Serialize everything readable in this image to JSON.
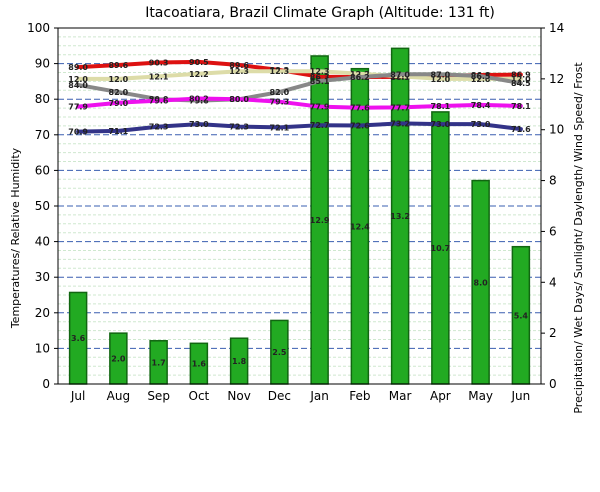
{
  "chart_data": {
    "type": "bar+line",
    "title": "Itacoatiara, Brazil Climate Graph (Altitude: 131 ft)",
    "categories": [
      "Jul",
      "Aug",
      "Sep",
      "Oct",
      "Nov",
      "Dec",
      "Jan",
      "Feb",
      "Mar",
      "Apr",
      "May",
      "Jun"
    ],
    "ylabel": "Temperatures/ Relative Humidity",
    "y2label": "Precipitation/ Wet Days/ Sunlight/ Daylength/ Wind Speed/ Frost",
    "ylim": [
      0,
      100
    ],
    "y2lim": [
      0,
      14
    ],
    "yticks": [
      "0",
      "10",
      "20",
      "30",
      "40",
      "50",
      "60",
      "70",
      "80",
      "90",
      "100"
    ],
    "y2ticks": [
      "0",
      "2",
      "4",
      "6",
      "8",
      "10",
      "12",
      "14"
    ],
    "grid": true,
    "bar_series": {
      "axis": "right",
      "color": "#22aa22",
      "values": [
        3.6,
        2.0,
        1.7,
        1.6,
        1.8,
        2.5,
        12.9,
        12.4,
        13.2,
        10.7,
        8.0,
        5.4
      ],
      "labels": [
        "3.6",
        "2.0",
        "1.7",
        "1.6",
        "1.8",
        "2.5",
        "12.9",
        "12.4",
        "13.2",
        "10.7",
        "8.0",
        "5.4"
      ]
    },
    "line_series": [
      {
        "color": "#dd1111",
        "axis": "left",
        "values": [
          89.0,
          89.6,
          90.3,
          90.5,
          89.6,
          88.2,
          86.3,
          86.2,
          86.3,
          86.5,
          86.8,
          86.9
        ],
        "labels": [
          "89.0",
          "89.6",
          "90.3",
          "90.5",
          "89.6",
          "88.2",
          "86.3",
          "86.2",
          "86.3",
          "86.5",
          "86.8",
          "86.9"
        ]
      },
      {
        "color": "#dddca8",
        "axis": "right",
        "values": [
          12.0,
          12.0,
          12.1,
          12.2,
          12.3,
          12.3,
          12.3,
          12.2,
          12.1,
          12.0,
          12.0,
          12.0
        ],
        "labels": [
          "12.0",
          "12.0",
          "12.1",
          "12.2",
          "12.3",
          "12.3",
          "12.3",
          "12.2",
          "12.1",
          "12.0",
          "12.0",
          "12.0"
        ]
      },
      {
        "color": "#888888",
        "axis": "left",
        "values": [
          84.0,
          82.0,
          80.0,
          79.6,
          80.0,
          82.0,
          85.1,
          86.2,
          87.0,
          87.0,
          86.5,
          84.5
        ],
        "labels": [
          "84.0",
          "82.0",
          "80.0",
          "79.6",
          "80.0",
          "82.0",
          "85.1",
          "86.2",
          "87.0",
          "87.0",
          "86.5",
          "84.5"
        ]
      },
      {
        "color": "#ee11ee",
        "axis": "left",
        "values": [
          77.9,
          79.0,
          79.6,
          80.2,
          80.0,
          79.3,
          77.9,
          77.6,
          77.7,
          78.1,
          78.4,
          78.1
        ],
        "labels": [
          "77.9",
          "79.0",
          "79.6",
          "80.2",
          "80.0",
          "79.3",
          "77.9",
          "77.6",
          "77.7",
          "78.1",
          "78.4",
          "78.1"
        ]
      },
      {
        "color": "#333388",
        "axis": "left",
        "values": [
          70.9,
          71.1,
          72.3,
          73.0,
          72.3,
          72.1,
          72.7,
          72.6,
          73.2,
          73.0,
          73.0,
          71.6
        ],
        "labels": [
          "70.9",
          "71.1",
          "72.3",
          "73.0",
          "72.3",
          "72.1",
          "72.7",
          "72.6",
          "73.2",
          "73.0",
          "73.0",
          "71.6"
        ]
      }
    ]
  }
}
